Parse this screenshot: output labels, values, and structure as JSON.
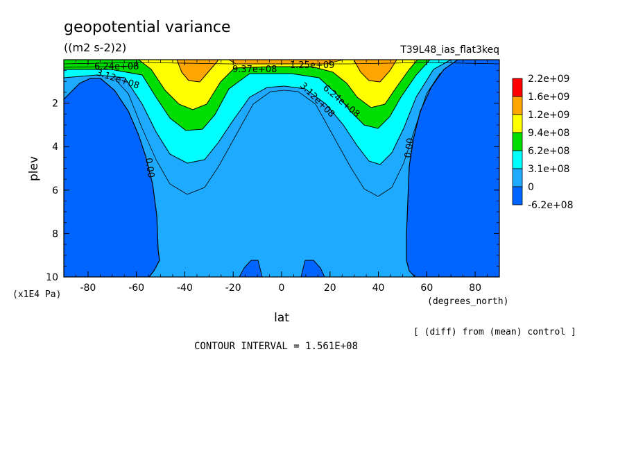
{
  "chart_data": {
    "type": "contour",
    "title": "geopotential variance",
    "units": "((m2 s-2)2)",
    "run": "T39L48_ias_flat3keq",
    "xlabel": "lat",
    "xunits": "(degrees_north)",
    "ylabel": "plev",
    "yunits": "(x1E4 Pa)",
    "xlim": [
      -90,
      90
    ],
    "ylim": [
      10,
      0
    ],
    "xticks": [
      -80,
      -60,
      -40,
      -20,
      0,
      20,
      40,
      60,
      80
    ],
    "yticks": [
      2,
      4,
      6,
      8,
      10
    ],
    "contour_interval": "CONTOUR INTERVAL = 1.561E+08",
    "note": "[ (diff) from (mean) control ]",
    "contour_labels": [
      "0.00",
      "0.00",
      "3.12e+08",
      "6.24e+08",
      "6.24e+08",
      "3.12e+08",
      "9.37e+08",
      "1.25e+09"
    ],
    "legend": [
      {
        "label": "2.2e+09",
        "color": "#ff0000"
      },
      {
        "label": "1.6e+09",
        "color": "#ffa500"
      },
      {
        "label": "1.2e+09",
        "color": "#ffff00"
      },
      {
        "label": "9.4e+08",
        "color": "#00dd00"
      },
      {
        "label": "6.2e+08",
        "color": "#00ffff"
      },
      {
        "label": "3.1e+08",
        "color": "#1eaaff"
      },
      {
        "label": "0",
        "color": "#0064ff"
      },
      {
        "label": "-6.2e+08",
        "color": ""
      }
    ]
  }
}
